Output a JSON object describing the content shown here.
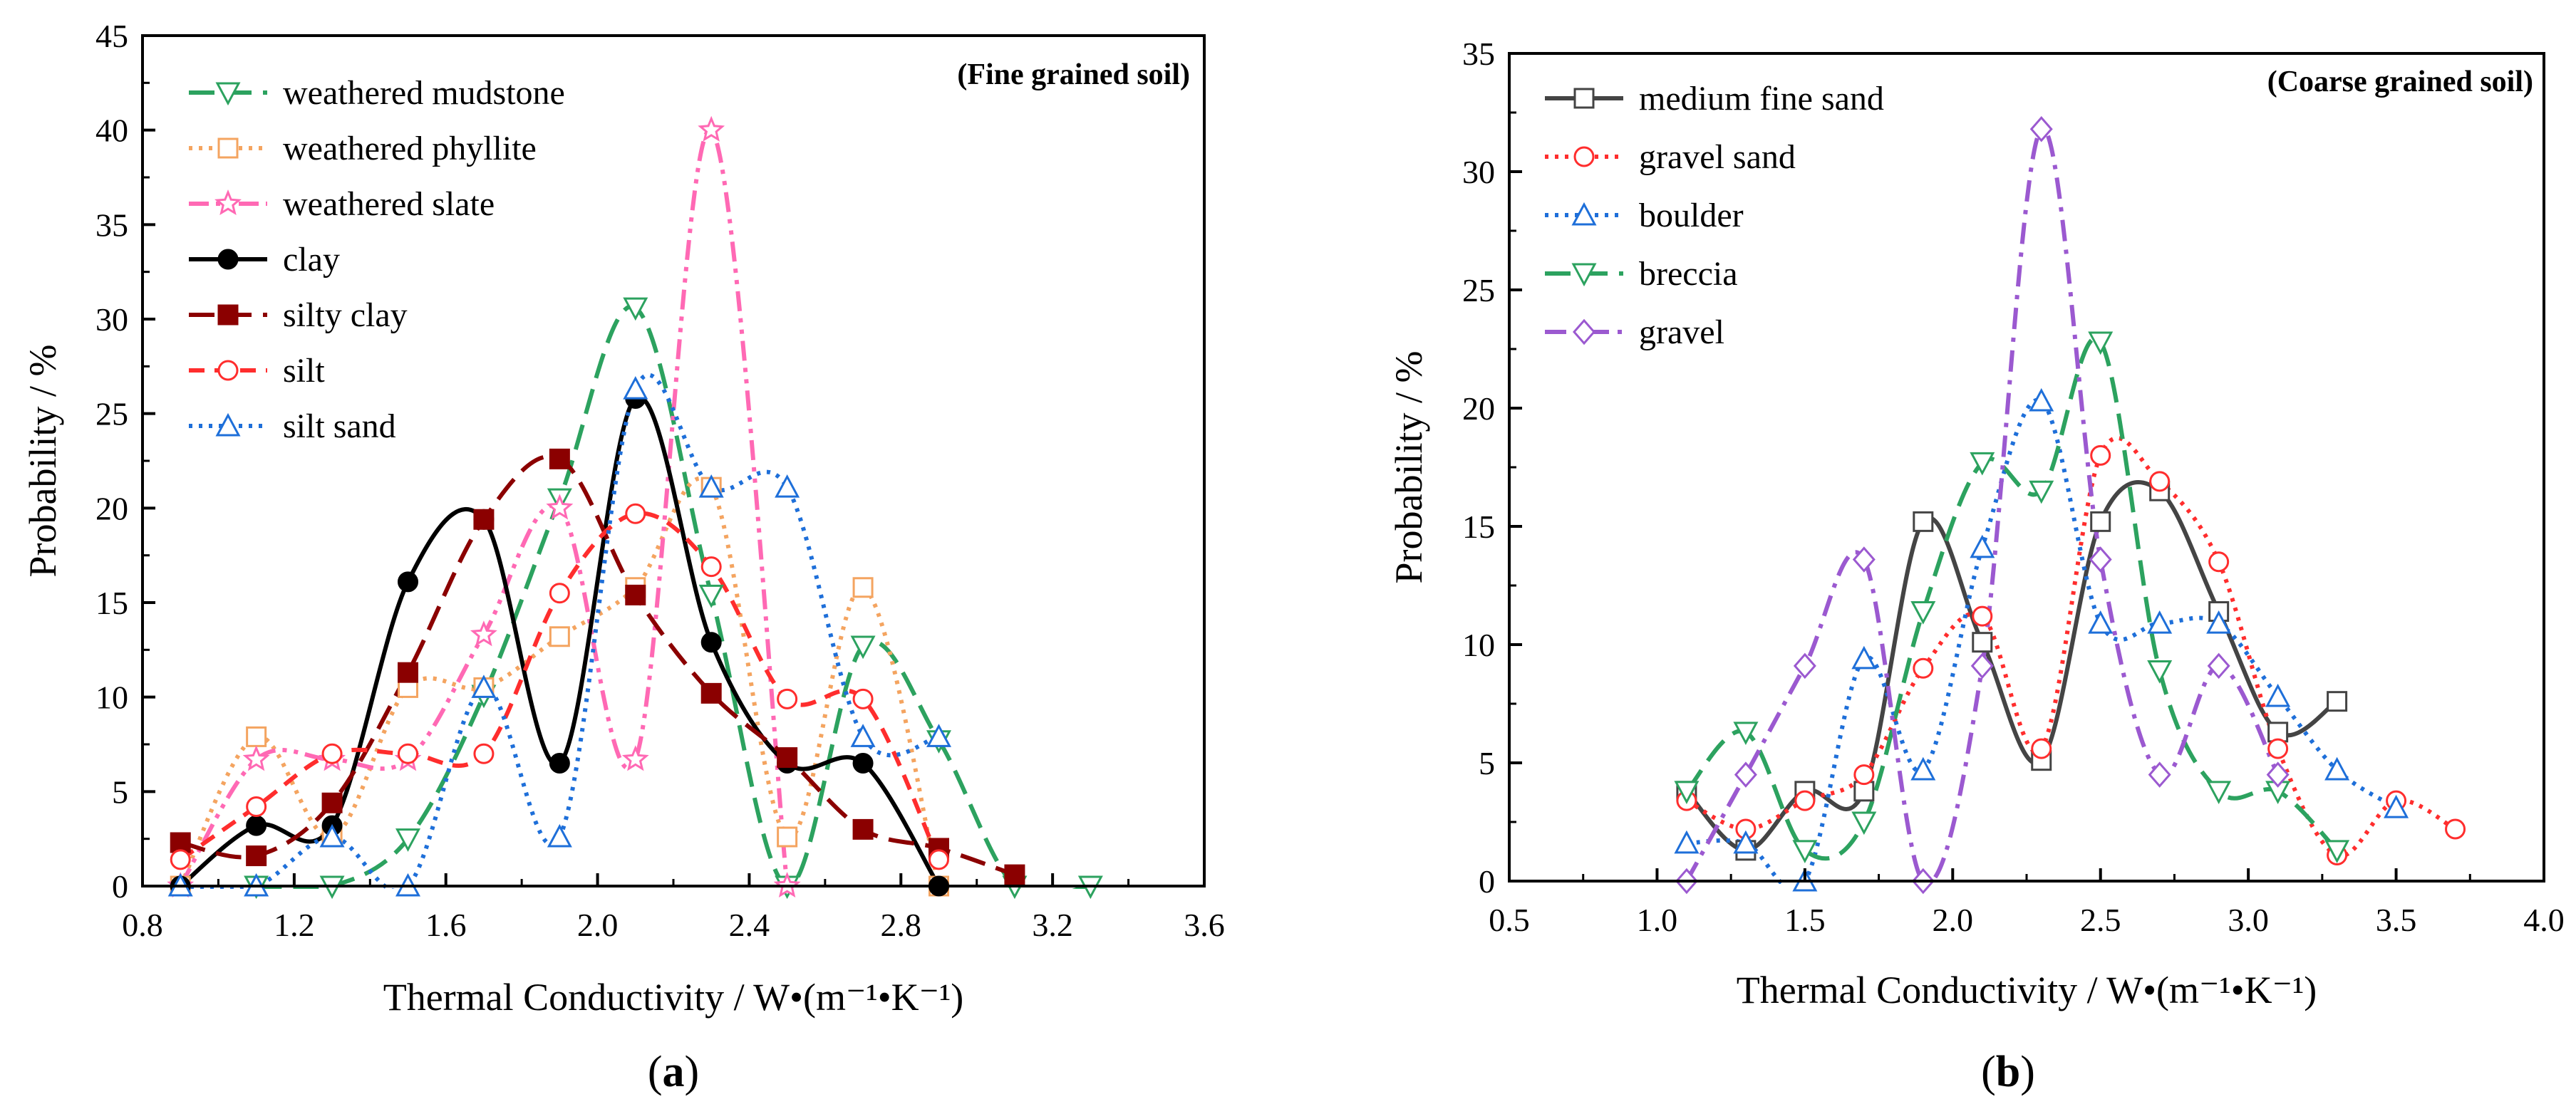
{
  "chart_data": [
    {
      "panel": "a",
      "type": "line",
      "annotation": "(Fine grained soil)",
      "xlabel": "Thermal Conductivity / W•(m⁻¹•K⁻¹)",
      "ylabel": "Probability / %",
      "xlim": [
        0.8,
        3.6
      ],
      "ylim": [
        0,
        45
      ],
      "xticks": [
        0.8,
        1.2,
        1.6,
        2.0,
        2.4,
        2.8,
        3.2,
        3.6
      ],
      "xtick_labels": [
        "0.8",
        "1.2",
        "1.6",
        "2.0",
        "2.4",
        "2.8",
        "3.2",
        "3.6"
      ],
      "yticks": [
        0,
        5,
        10,
        15,
        20,
        25,
        30,
        35,
        40,
        45
      ],
      "ytick_labels": [
        "0",
        "5",
        "10",
        "15",
        "20",
        "25",
        "30",
        "35",
        "40",
        "45"
      ],
      "legend_position": "top-left",
      "series": [
        {
          "name": "weathered mudstone",
          "color": "#2ca25f",
          "dash": "long-dash",
          "marker": "triangle-down-open",
          "x": [
            1.1,
            1.3,
            1.5,
            1.7,
            1.9,
            2.1,
            2.3,
            2.5,
            2.7,
            2.9,
            3.1,
            3.3
          ],
          "y": [
            0,
            0,
            2.5,
            10.1,
            20.5,
            30.6,
            15.4,
            0,
            12.7,
            7.7,
            0,
            0
          ]
        },
        {
          "name": "weathered phyllite",
          "color": "#f4a460",
          "dash": "dot",
          "marker": "square-open",
          "x": [
            0.9,
            1.1,
            1.3,
            1.5,
            1.7,
            1.9,
            2.1,
            2.3,
            2.5,
            2.7,
            2.9
          ],
          "y": [
            0,
            7.9,
            2.6,
            10.5,
            10.5,
            13.2,
            15.8,
            21.1,
            2.6,
            15.8,
            0
          ]
        },
        {
          "name": "weathered slate",
          "color": "#ff69b4",
          "dash": "dash-dot-dot",
          "marker": "star-open",
          "x": [
            0.9,
            1.1,
            1.3,
            1.5,
            1.7,
            1.9,
            2.1,
            2.3,
            2.5
          ],
          "y": [
            0,
            6.7,
            6.7,
            6.7,
            13.3,
            20.0,
            6.7,
            40.0,
            0
          ]
        },
        {
          "name": "clay",
          "color": "#000000",
          "dash": "solid",
          "marker": "circle-filled",
          "x": [
            0.9,
            1.1,
            1.3,
            1.5,
            1.7,
            1.9,
            2.1,
            2.3,
            2.5,
            2.7,
            2.9
          ],
          "y": [
            0,
            3.2,
            3.2,
            16.1,
            19.4,
            6.5,
            25.8,
            12.9,
            6.5,
            6.5,
            0
          ]
        },
        {
          "name": "silty clay",
          "color": "#8b0000",
          "dash": "long-dash",
          "marker": "square-filled",
          "x": [
            0.9,
            1.1,
            1.3,
            1.5,
            1.7,
            1.9,
            2.1,
            2.3,
            2.5,
            2.7,
            2.9,
            3.1
          ],
          "y": [
            2.3,
            1.6,
            4.4,
            11.3,
            19.4,
            22.6,
            15.4,
            10.2,
            6.8,
            3.0,
            2.0,
            0.6
          ]
        },
        {
          "name": "silt",
          "color": "#ff2d2d",
          "dash": "dash",
          "marker": "circle-open",
          "x": [
            0.9,
            1.1,
            1.3,
            1.5,
            1.7,
            1.9,
            2.1,
            2.3,
            2.5,
            2.7,
            2.9
          ],
          "y": [
            1.4,
            4.2,
            7.0,
            7.0,
            7.0,
            15.5,
            19.7,
            16.9,
            9.9,
            9.9,
            1.4
          ]
        },
        {
          "name": "silt sand",
          "color": "#1e6fd9",
          "dash": "dot",
          "marker": "triangle-up-open",
          "x": [
            0.9,
            1.1,
            1.3,
            1.5,
            1.7,
            1.9,
            2.1,
            2.3,
            2.5,
            2.7,
            2.9
          ],
          "y": [
            0,
            0,
            2.6,
            0,
            10.5,
            2.6,
            26.3,
            21.1,
            21.1,
            7.9,
            7.9
          ]
        }
      ]
    },
    {
      "panel": "b",
      "type": "line",
      "annotation": "(Coarse grained soil)",
      "xlabel": "Thermal Conductivity / W•(m⁻¹•K⁻¹)",
      "ylabel": "Probability / %",
      "xlim": [
        0.5,
        4.0
      ],
      "ylim": [
        0,
        35
      ],
      "xticks": [
        0.5,
        1.0,
        1.5,
        2.0,
        2.5,
        3.0,
        3.5,
        4.0
      ],
      "xtick_labels": [
        "0.5",
        "1.0",
        "1.5",
        "2.0",
        "2.5",
        "3.0",
        "3.5",
        "4.0"
      ],
      "yticks": [
        0,
        5,
        10,
        15,
        20,
        25,
        30,
        35
      ],
      "ytick_labels": [
        "0",
        "5",
        "10",
        "15",
        "20",
        "25",
        "30",
        "35"
      ],
      "legend_position": "top-left",
      "series": [
        {
          "name": "medium fine sand",
          "color": "#444444",
          "dash": "solid",
          "marker": "square-open",
          "x": [
            1.1,
            1.3,
            1.5,
            1.7,
            1.9,
            2.1,
            2.3,
            2.5,
            2.7,
            2.9,
            3.1,
            3.3
          ],
          "y": [
            3.8,
            1.3,
            3.8,
            3.8,
            15.2,
            10.1,
            5.1,
            15.2,
            16.5,
            11.4,
            6.3,
            7.6
          ]
        },
        {
          "name": "gravel sand",
          "color": "#ff2d2d",
          "dash": "dot",
          "marker": "circle-open",
          "x": [
            1.1,
            1.3,
            1.5,
            1.7,
            1.9,
            2.1,
            2.3,
            2.5,
            2.7,
            2.9,
            3.1,
            3.3,
            3.5,
            3.7
          ],
          "y": [
            3.4,
            2.2,
            3.4,
            4.5,
            9.0,
            11.2,
            5.6,
            18.0,
            16.9,
            13.5,
            5.6,
            1.1,
            3.4,
            2.2
          ]
        },
        {
          "name": "boulder",
          "color": "#1e6fd9",
          "dash": "dot",
          "marker": "triangle-up-open",
          "x": [
            1.1,
            1.3,
            1.5,
            1.7,
            1.9,
            2.1,
            2.3,
            2.5,
            2.7,
            2.9,
            3.1,
            3.3,
            3.5
          ],
          "y": [
            1.6,
            1.6,
            0,
            9.4,
            4.7,
            14.1,
            20.3,
            10.9,
            10.9,
            10.9,
            7.8,
            4.7,
            3.1
          ]
        },
        {
          "name": "breccia",
          "color": "#2ca25f",
          "dash": "long-dash",
          "marker": "triangle-down-open",
          "x": [
            1.1,
            1.3,
            1.5,
            1.7,
            1.9,
            2.1,
            2.3,
            2.5,
            2.7,
            2.9,
            3.1,
            3.3
          ],
          "y": [
            3.8,
            6.3,
            1.3,
            2.5,
            11.4,
            17.7,
            16.5,
            22.8,
            8.9,
            3.8,
            3.8,
            1.3
          ]
        },
        {
          "name": "gravel",
          "color": "#9b59d0",
          "dash": "dash-dot",
          "marker": "diamond-open",
          "x": [
            1.1,
            1.3,
            1.5,
            1.7,
            1.9,
            2.1,
            2.3,
            2.5,
            2.7,
            2.9,
            3.1
          ],
          "y": [
            0,
            4.5,
            9.1,
            13.6,
            0,
            9.1,
            31.8,
            13.6,
            4.5,
            9.1,
            4.5
          ]
        }
      ]
    }
  ]
}
